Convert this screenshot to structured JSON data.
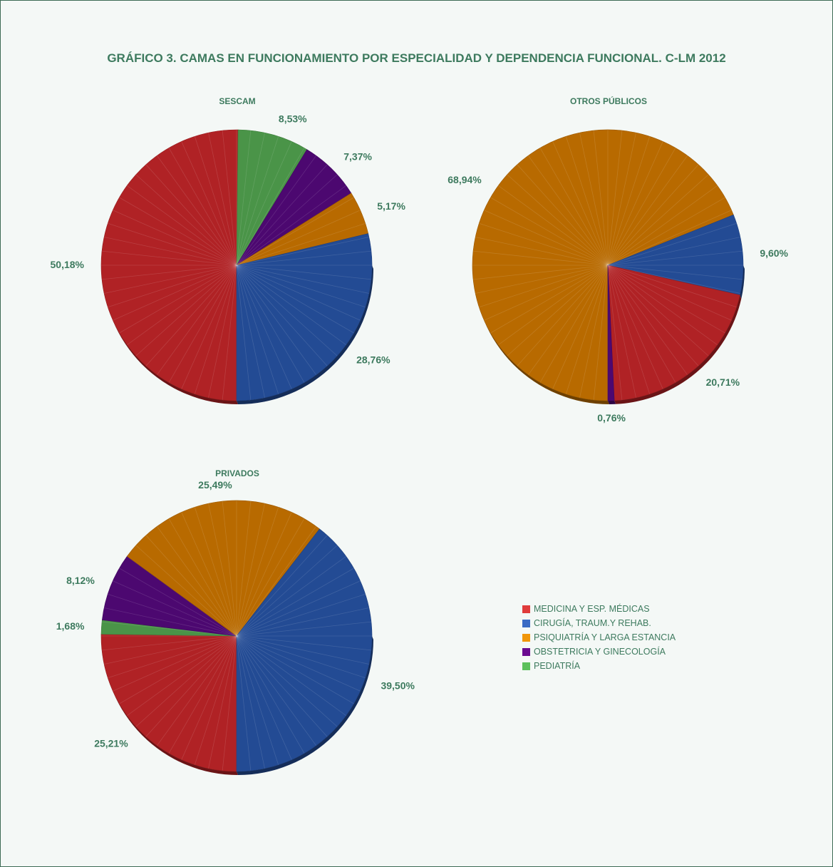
{
  "chart_title": "GRÁFICO 3. CAMAS EN FUNCIONAMIENTO POR ESPECIALIDAD Y DEPENDENCIA FUNCIONAL. C-LM 2012",
  "legend": [
    {
      "label": "MEDICINA Y ESP. MÉDICAS",
      "color": "#e03c3c"
    },
    {
      "label": "CIRUGÍA, TRAUM.Y REHAB.",
      "color": "#3a6bc4"
    },
    {
      "label": "PSIQUIATRÍA Y LARGA ESTANCIA",
      "color": "#f0960a"
    },
    {
      "label": "OBSTETRICIA Y GINECOLOGÍA",
      "color": "#6a0a90"
    },
    {
      "label": "PEDIATRÍA",
      "color": "#5cc05c"
    }
  ],
  "chart_data": [
    {
      "type": "pie",
      "title": "SESCAM",
      "categories": [
        "MEDICINA Y ESP. MÉDICAS",
        "CIRUGÍA, TRAUM.Y REHAB.",
        "PSIQUIATRÍA Y LARGA ESTANCIA",
        "OBSTETRICIA Y GINECOLOGÍA",
        "PEDIATRÍA"
      ],
      "values": [
        50.18,
        28.76,
        5.17,
        7.37,
        8.53
      ],
      "labels": [
        "50,18%",
        "28,76%",
        "5,17%",
        "7,37%",
        "8,53%"
      ],
      "slice_colors": [
        "#b02225",
        "#234b94",
        "#b86a00",
        "#4c0870",
        "#4a9448"
      ],
      "slice_order": [
        0,
        4,
        3,
        2,
        1
      ]
    },
    {
      "type": "pie",
      "title": "OTROS PÚBLICOS",
      "categories": [
        "MEDICINA Y ESP. MÉDICAS",
        "CIRUGÍA, TRAUM.Y REHAB.",
        "PSIQUIATRÍA Y LARGA ESTANCIA",
        "OBSTETRICIA Y GINECOLOGÍA",
        "PEDIATRÍA"
      ],
      "values": [
        20.71,
        9.6,
        68.94,
        0.76,
        0
      ],
      "labels": [
        "20,71%",
        "9,60%",
        "68,94%",
        "0,76%",
        ""
      ],
      "slice_colors": [
        "#b02225",
        "#234b94",
        "#b86a00",
        "#4c0870",
        "#4a9448"
      ],
      "slice_order": [
        2,
        1,
        0,
        3
      ]
    },
    {
      "type": "pie",
      "title": "PRIVADOS",
      "categories": [
        "MEDICINA Y ESP. MÉDICAS",
        "CIRUGÍA, TRAUM.Y REHAB.",
        "PSIQUIATRÍA Y LARGA ESTANCIA",
        "OBSTETRICIA Y GINECOLOGÍA",
        "PEDIATRÍA"
      ],
      "values": [
        25.21,
        39.5,
        25.49,
        8.12,
        1.68
      ],
      "labels": [
        "25,21%",
        "39,50%",
        "25,49%",
        "8,12%",
        "1,68%"
      ],
      "slice_colors": [
        "#b02225",
        "#234b94",
        "#b86a00",
        "#4c0870",
        "#4a9448"
      ],
      "slice_order": [
        0,
        4,
        3,
        2,
        1
      ]
    }
  ]
}
